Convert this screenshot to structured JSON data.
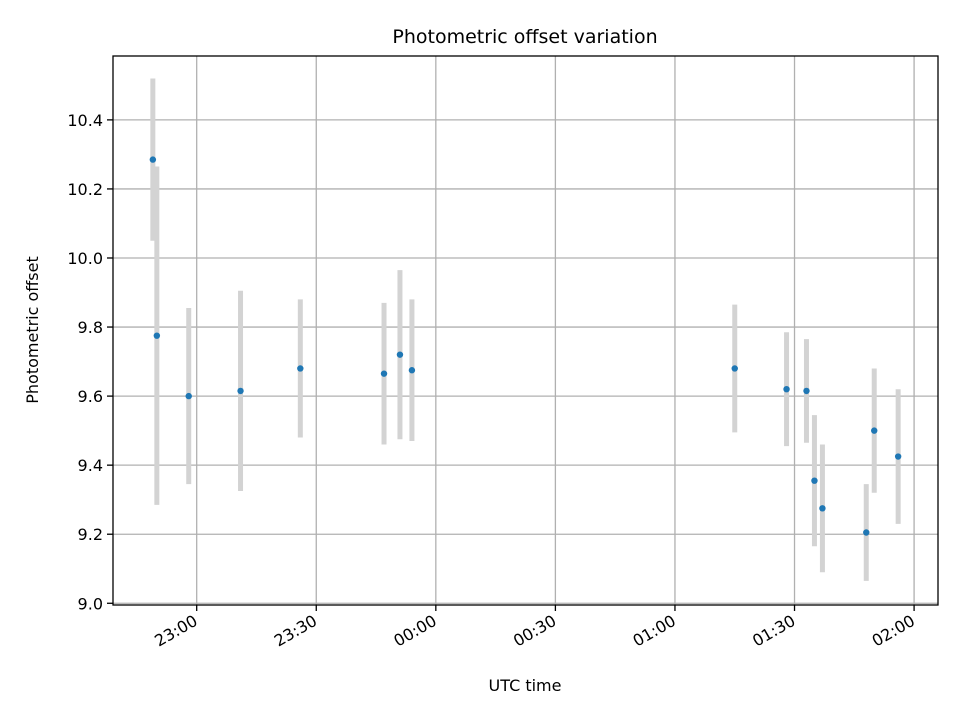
{
  "chart_data": {
    "type": "scatter",
    "title": "Photometric offset variation",
    "xlabel": "UTC time",
    "ylabel": "Photometric offset",
    "x_type": "time",
    "xlim": [
      "22:39",
      "02:06"
    ],
    "ylim": [
      8.995,
      10.585
    ],
    "x_ticks": [
      "23:00",
      "23:30",
      "00:00",
      "00:30",
      "01:00",
      "01:30",
      "02:00"
    ],
    "y_ticks": [
      "9.0",
      "9.2",
      "9.4",
      "9.6",
      "9.8",
      "10.0",
      "10.2",
      "10.4"
    ],
    "grid": true,
    "colors": {
      "point": "#1f77b4",
      "errorbar": "#d3d3d3",
      "grid": "#b0b0b0"
    },
    "points": [
      {
        "x": "22:49",
        "y": 10.285,
        "err": 0.235
      },
      {
        "x": "22:50",
        "y": 9.775,
        "err": 0.49
      },
      {
        "x": "22:58",
        "y": 9.6,
        "err": 0.255
      },
      {
        "x": "23:11",
        "y": 9.615,
        "err": 0.29
      },
      {
        "x": "23:26",
        "y": 9.68,
        "err": 0.2
      },
      {
        "x": "23:47",
        "y": 9.665,
        "err": 0.205
      },
      {
        "x": "23:51",
        "y": 9.72,
        "err": 0.245
      },
      {
        "x": "23:54",
        "y": 9.675,
        "err": 0.205
      },
      {
        "x": "01:15",
        "y": 9.68,
        "err": 0.185
      },
      {
        "x": "01:28",
        "y": 9.62,
        "err": 0.165
      },
      {
        "x": "01:33",
        "y": 9.615,
        "err": 0.15
      },
      {
        "x": "01:35",
        "y": 9.355,
        "err": 0.19
      },
      {
        "x": "01:37",
        "y": 9.275,
        "err": 0.185
      },
      {
        "x": "01:48",
        "y": 9.205,
        "err": 0.14
      },
      {
        "x": "01:50",
        "y": 9.5,
        "err": 0.18
      },
      {
        "x": "01:56",
        "y": 9.425,
        "err": 0.195
      }
    ]
  }
}
